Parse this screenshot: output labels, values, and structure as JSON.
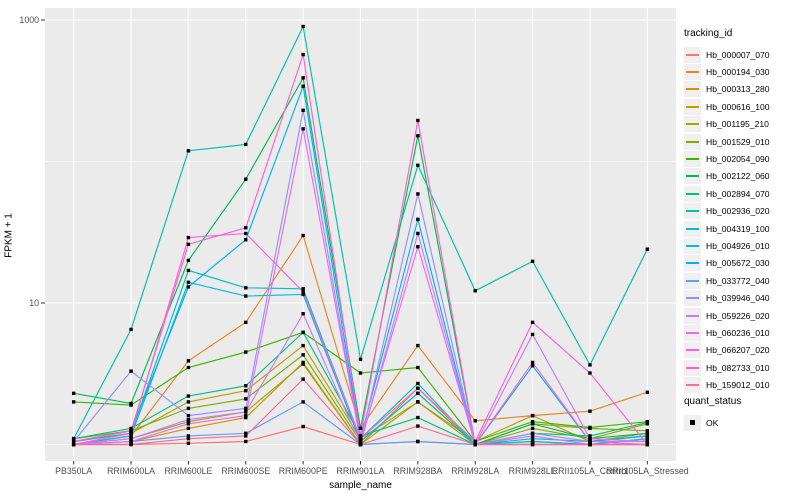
{
  "figure": {
    "background": "#ffffff",
    "panel_background": "#ebebeb",
    "gridline_color": "#ffffff",
    "axis_text_color": "#4d4d4d",
    "tick_color": "#333333",
    "point_color": "#000000"
  },
  "chart_data": {
    "type": "line",
    "title": "",
    "xlabel": "sample_name",
    "ylabel": "FPKM + 1",
    "y_scale": "log10",
    "y_ticks": [
      10,
      1000
    ],
    "y_tick_labels": [
      "10",
      "1000"
    ],
    "y_minor_gridlines": [
      1,
      100
    ],
    "ylim": [
      0.93,
      1100
    ],
    "grid": true,
    "legend_position": "right",
    "categories": [
      "PB350LA",
      "RRIM600LA",
      "RRIM600LE",
      "RRIM600SE",
      "RRIM600PE",
      "RRIM901LA",
      "RRIM928BA",
      "RRIM928LA",
      "RRIM928LE",
      "RRII105LA_Control",
      "RRII105LA_Stressed"
    ],
    "series": [
      {
        "name": "Hb_000007_070",
        "color": "#F8766D",
        "values": [
          1.0,
          1.0,
          1.02,
          1.05,
          1.34,
          1.0,
          1.05,
          1.0,
          1.0,
          1.0,
          1.0
        ]
      },
      {
        "name": "Hb_000194_030",
        "color": "#E88526",
        "values": [
          1.0,
          1.15,
          3.9,
          7.3,
          30,
          1.3,
          5.0,
          1.47,
          1.6,
          1.72,
          2.34
        ]
      },
      {
        "name": "Hb_000313_280",
        "color": "#D89000",
        "values": [
          1.0,
          1.05,
          1.3,
          1.55,
          3.8,
          1.0,
          2.5,
          1.0,
          1.05,
          1.0,
          1.1
        ]
      },
      {
        "name": "Hb_000616_100",
        "color": "#C09B00",
        "values": [
          1.05,
          1.2,
          2.0,
          2.4,
          5.0,
          1.1,
          2.0,
          1.05,
          1.6,
          1.05,
          1.2
        ]
      },
      {
        "name": "Hb_001195_210",
        "color": "#A3A500",
        "values": [
          1.0,
          1.1,
          1.45,
          1.7,
          3.7,
          1.0,
          2.0,
          1.0,
          1.3,
          1.1,
          1.4
        ]
      },
      {
        "name": "Hb_001529_010",
        "color": "#7CAE00",
        "values": [
          1.1,
          1.25,
          1.8,
          2.1,
          4.3,
          1.05,
          2.3,
          1.0,
          1.4,
          1.3,
          1.25
        ]
      },
      {
        "name": "Hb_002054_090",
        "color": "#39B600",
        "values": [
          2.0,
          1.9,
          3.5,
          4.5,
          6.2,
          3.2,
          3.5,
          1.05,
          1.45,
          1.32,
          1.45
        ]
      },
      {
        "name": "Hb_002122_060",
        "color": "#00BB4E",
        "values": [
          2.3,
          1.95,
          20,
          75,
          390,
          1.3,
          152,
          1.0,
          1.4,
          1.1,
          1.2
        ]
      },
      {
        "name": "Hb_002894_070",
        "color": "#00BF7D",
        "values": [
          1.1,
          1.3,
          2.2,
          2.6,
          6.2,
          1.15,
          1.55,
          1.0,
          1.2,
          1.15,
          1.43
        ]
      },
      {
        "name": "Hb_002936_020",
        "color": "#00C1A3",
        "values": [
          1.1,
          6.5,
          119,
          132,
          900,
          4.0,
          94,
          12.2,
          19.7,
          3.65,
          24
        ]
      },
      {
        "name": "Hb_004319_100",
        "color": "#00BFC4",
        "values": [
          1.05,
          1.2,
          17,
          12.8,
          12.6,
          1.1,
          2.7,
          1.0,
          1.1,
          1.05,
          1.15
        ]
      },
      {
        "name": "Hb_004926_010",
        "color": "#00BAE0",
        "values": [
          1.0,
          1.15,
          14,
          11.2,
          11.5,
          1.05,
          2.3,
          1.0,
          1.05,
          1.0,
          1.1
        ]
      },
      {
        "name": "Hb_005672_030",
        "color": "#00B0F6",
        "values": [
          1.05,
          1.25,
          13,
          28,
          340,
          1.1,
          39,
          1.0,
          3.6,
          1.05,
          1.15
        ]
      },
      {
        "name": "Hb_033772_040",
        "color": "#619CFF",
        "values": [
          1.0,
          1.05,
          1.15,
          1.2,
          2.0,
          1.0,
          1.05,
          1.0,
          1.0,
          1.0,
          1.0
        ]
      },
      {
        "name": "Hb_039946_040",
        "color": "#9590FF",
        "values": [
          1.05,
          3.3,
          1.6,
          1.8,
          230,
          1.05,
          59,
          1.0,
          1.2,
          1.05,
          1.05
        ]
      },
      {
        "name": "Hb_059226_020",
        "color": "#C77CFF",
        "values": [
          1.0,
          1.1,
          1.5,
          1.7,
          8.4,
          1.0,
          31,
          1.0,
          6.0,
          1.1,
          1.05
        ]
      },
      {
        "name": "Hb_060236_010",
        "color": "#E76BF3",
        "values": [
          1.0,
          1.05,
          1.4,
          1.6,
          170,
          1.05,
          25,
          1.0,
          1.15,
          1.0,
          1.0
        ]
      },
      {
        "name": "Hb_066207_020",
        "color": "#FA62DB",
        "values": [
          1.0,
          1.2,
          29,
          31,
          12.0,
          1.1,
          2.5,
          1.05,
          7.3,
          3.2,
          1.0
        ]
      },
      {
        "name": "Hb_082733_010",
        "color": "#FF61CC",
        "values": [
          1.05,
          1.25,
          26,
          34,
          570,
          1.15,
          195,
          1.0,
          3.8,
          1.05,
          1.0
        ]
      },
      {
        "name": "Hb_159012_010",
        "color": "#FF6A98",
        "values": [
          1.0,
          1.0,
          1.1,
          1.15,
          2.9,
          1.0,
          1.35,
          1.0,
          1.0,
          1.0,
          1.0
        ]
      }
    ],
    "legend": {
      "title": "tracking_id"
    },
    "quant_legend": {
      "title": "quant_status",
      "items": [
        "OK"
      ]
    }
  }
}
